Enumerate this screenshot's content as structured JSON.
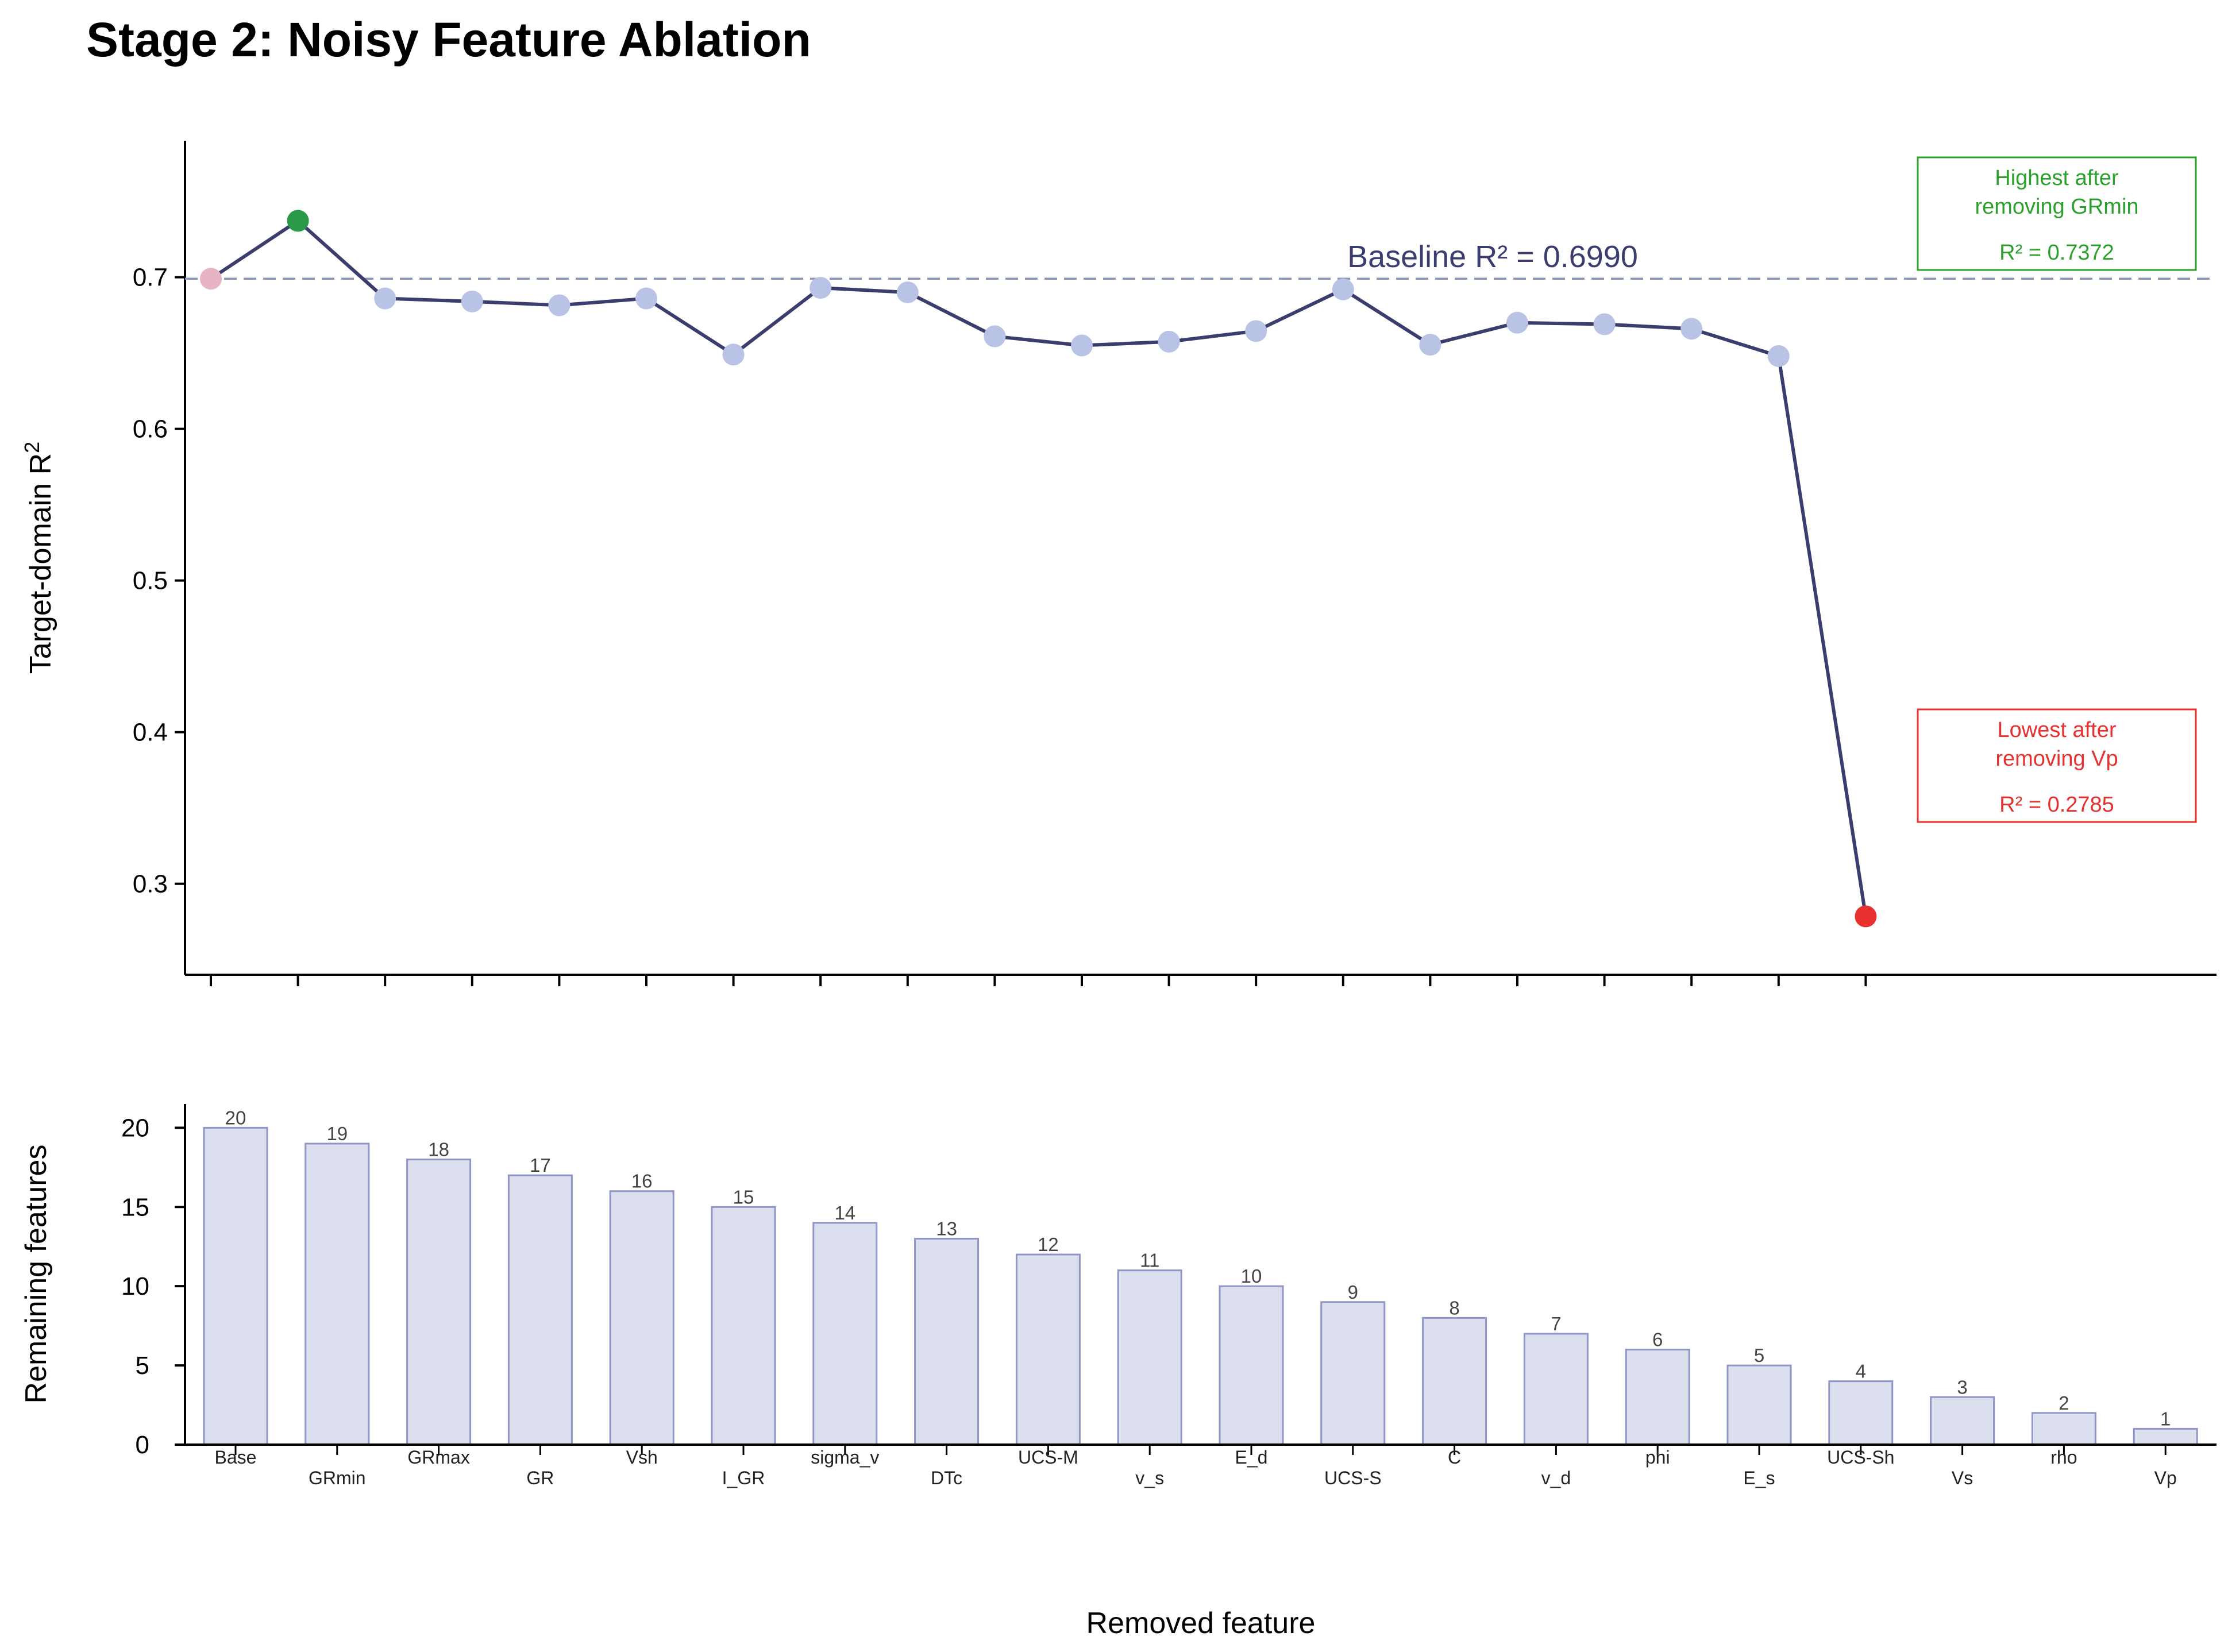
{
  "title": "Stage 2: Noisy Feature Ablation",
  "chart_data": [
    {
      "type": "line",
      "ylabel": "Target-domain R",
      "ylabel_sup": "2",
      "ylim": [
        0.24,
        0.79
      ],
      "yticks": [
        0.3,
        0.4,
        0.5,
        0.6,
        0.7
      ],
      "xticks_labeled": false,
      "grid": false,
      "series": [
        {
          "values": [
            0.699,
            0.7372,
            0.686,
            0.684,
            0.6815,
            0.686,
            0.649,
            0.693,
            0.69,
            0.661,
            0.655,
            0.6575,
            0.6645,
            0.692,
            0.6555,
            0.67,
            0.669,
            0.666,
            0.648,
            0.2785
          ]
        }
      ],
      "baseline": {
        "value": 0.699,
        "label": "Baseline R² = 0.6990"
      },
      "annotations": [
        {
          "lines": [
            "Highest after",
            "removing GRmin",
            "R² = 0.7372"
          ],
          "color": "#2ca02c",
          "point_index": 1
        },
        {
          "lines": [
            "Lowest after",
            "removing Vp",
            "R² = 0.2785"
          ],
          "color": "#e8312f",
          "point_index": 19
        }
      ],
      "colors": {
        "line": "#3b3d6e",
        "point": "#b8c3e6",
        "base_point": "#e8b4c4",
        "best_point": "#2a9a48",
        "worst_point": "#e8312f",
        "baseline": "#8794b8"
      }
    },
    {
      "type": "bar",
      "ylabel": "Remaining features",
      "xlabel": "Removed feature",
      "ylim": [
        0,
        21.5
      ],
      "yticks": [
        0,
        5,
        10,
        15,
        20
      ],
      "categories": [
        "Base",
        "GRmin",
        "GRmax",
        "GR",
        "Vsh",
        "I_GR",
        "sigma_v",
        "DTc",
        "UCS-M",
        "v_s",
        "E_d",
        "UCS-S",
        "C",
        "v_d",
        "phi",
        "E_s",
        "UCS-Sh",
        "Vs",
        "rho",
        "Vp"
      ],
      "values": [
        20,
        19,
        18,
        17,
        16,
        15,
        14,
        13,
        12,
        11,
        10,
        9,
        8,
        7,
        6,
        5,
        4,
        3,
        2,
        1
      ],
      "colors": {
        "bar_fill": "#dcdfed",
        "bar_edge": "#8f96c6"
      }
    }
  ]
}
